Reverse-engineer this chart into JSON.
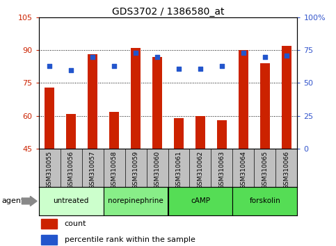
{
  "title": "GDS3702 / 1386580_at",
  "samples": [
    "GSM310055",
    "GSM310056",
    "GSM310057",
    "GSM310058",
    "GSM310059",
    "GSM310060",
    "GSM310061",
    "GSM310062",
    "GSM310063",
    "GSM310064",
    "GSM310065",
    "GSM310066"
  ],
  "bar_values": [
    73,
    61,
    88,
    62,
    91,
    87,
    59,
    60,
    58,
    90,
    84,
    92
  ],
  "dot_pct_values": [
    63,
    60,
    70,
    63,
    73,
    70,
    61,
    61,
    63,
    73,
    70,
    71
  ],
  "bar_color": "#cc2200",
  "dot_color": "#2255cc",
  "ylim_left": [
    45,
    105
  ],
  "ylim_right": [
    0,
    100
  ],
  "yticks_left": [
    45,
    60,
    75,
    90,
    105
  ],
  "ytick_labels_left": [
    "45",
    "60",
    "75",
    "90",
    "105"
  ],
  "yticks_right_vals": [
    0,
    25,
    50,
    75,
    100
  ],
  "ytick_labels_right": [
    "0",
    "25",
    "50",
    "75",
    "100%"
  ],
  "agent_groups": [
    {
      "label": "untreated",
      "start": 0,
      "end": 3,
      "color": "#ccffcc"
    },
    {
      "label": "norepinephrine",
      "start": 3,
      "end": 6,
      "color": "#88ee88"
    },
    {
      "label": "cAMP",
      "start": 6,
      "end": 9,
      "color": "#55dd55"
    },
    {
      "label": "forskolin",
      "start": 9,
      "end": 12,
      "color": "#55dd55"
    }
  ],
  "legend_count_label": "count",
  "legend_pct_label": "percentile rank within the sample",
  "agent_label": "agent",
  "left_axis_color": "#cc2200",
  "right_axis_color": "#3355cc",
  "grid_color": "#000000",
  "tick_area_bg": "#c0c0c0",
  "bar_width": 0.45
}
